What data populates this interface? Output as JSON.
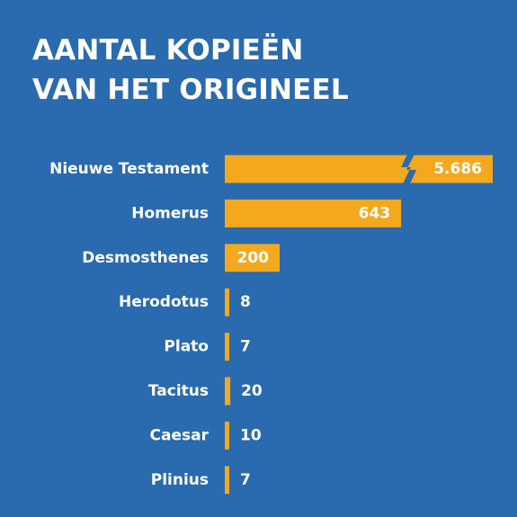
{
  "title": {
    "line1": "AANTAL KOPIEËN",
    "line2": "VAN HET ORIGINEEL"
  },
  "colors": {
    "background": "#2a6aae",
    "bar": "#f4a81d",
    "text": "#ffffff"
  },
  "chart_data": {
    "type": "bar",
    "orientation": "horizontal",
    "title": "AANTAL KOPIEËN VAN HET ORIGINEEL",
    "categories": [
      "Nieuwe Testament",
      "Homerus",
      "Desmosthenes",
      "Herodotus",
      "Plato",
      "Tacitus",
      "Caesar",
      "Plinius"
    ],
    "values": [
      5686,
      643,
      200,
      8,
      7,
      20,
      10,
      7
    ],
    "value_labels": [
      "5.686",
      "643",
      "200",
      "8",
      "7",
      "20",
      "10",
      "7"
    ],
    "axis_break": "Nieuwe Testament",
    "grid": false,
    "legend": "none"
  }
}
